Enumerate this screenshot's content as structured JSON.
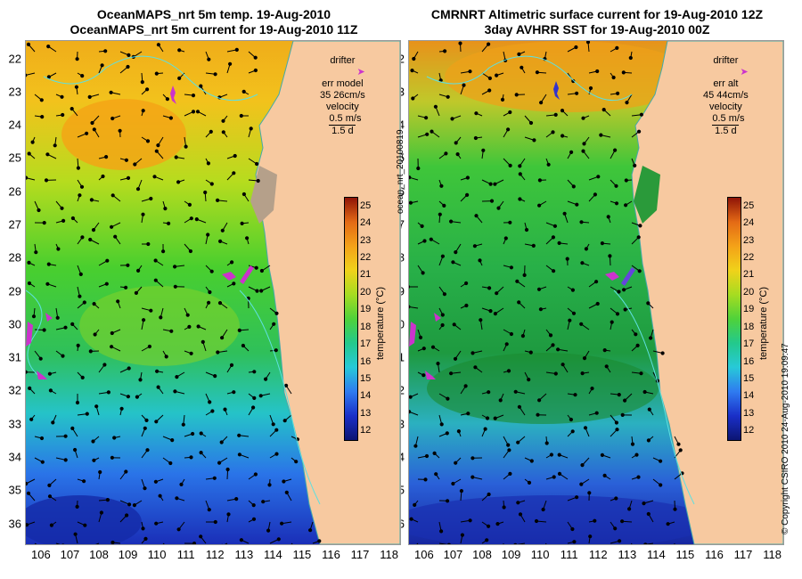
{
  "left_panel": {
    "title_line1": "OceanMAPS_nrt 5m temp. 19-Aug-2010",
    "title_line2": "OceanMAPS_nrt 5m current for 19-Aug-2010 11Z",
    "legend": {
      "drifter_label": "drifter",
      "err_label": "err model",
      "err_value": "35 26cm/s",
      "velocity_label": "velocity",
      "velocity_scale": "0.5 m/s",
      "velocity_duration": "1.5 d"
    }
  },
  "right_panel": {
    "title_line1": "CMRNRT Altimetric surface current for 19-Aug-2010 12Z",
    "title_line2": "3day AVHRR SST for 19-Aug-2010 00Z",
    "legend": {
      "drifter_label": "drifter",
      "err_label": "err alt",
      "err_value": "45 44cm/s",
      "velocity_label": "velocity",
      "velocity_scale": "0.5 m/s",
      "velocity_duration": "1.5 d"
    }
  },
  "latitude_labels": [
    "22",
    "23",
    "24",
    "25",
    "26",
    "27",
    "28",
    "29",
    "30",
    "31",
    "32",
    "33",
    "34",
    "35",
    "36"
  ],
  "longitude_labels": [
    "106",
    "107",
    "108",
    "109",
    "110",
    "111",
    "112",
    "113",
    "114",
    "115",
    "116",
    "117",
    "118"
  ],
  "colorbar": {
    "title": "temperature (°C)",
    "ticks": [
      "25",
      "24",
      "23",
      "22",
      "21",
      "20",
      "19",
      "18",
      "17",
      "16",
      "15",
      "14",
      "13",
      "12"
    ],
    "min": 11.5,
    "max": 25.5
  },
  "product_id": "ocean_nrt_20100819",
  "copyright": "© Copyright CSIRO 2010   24-Aug-2010 19:09:47",
  "colors": {
    "land": "#f7c9a0",
    "drifter": "#cc33cc",
    "bathymetry_contour": "#5fe0e0",
    "vector": "#000000"
  }
}
